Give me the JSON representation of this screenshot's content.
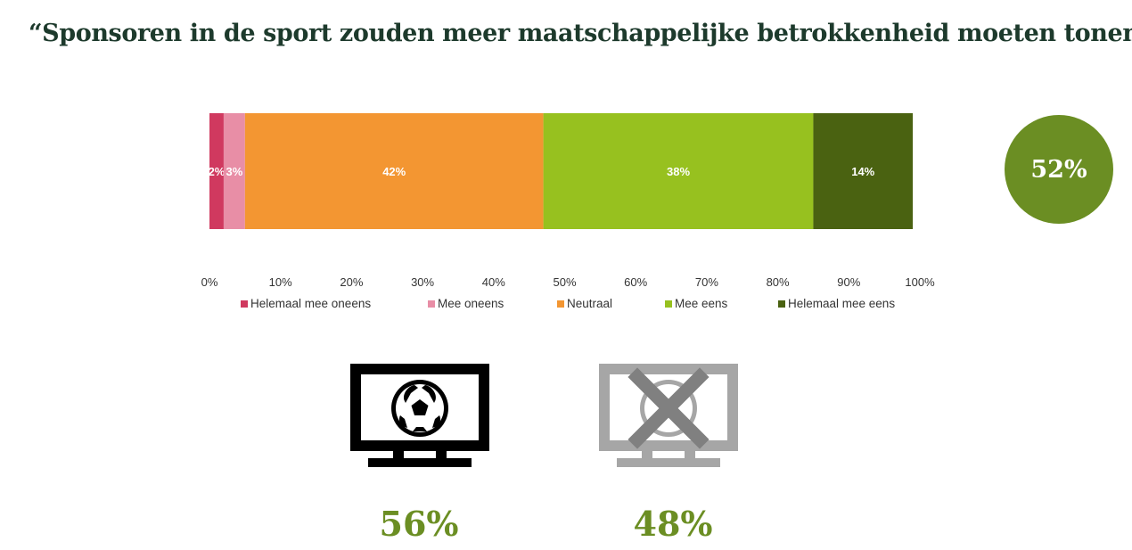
{
  "title": "“Sponsoren in de sport zouden meer maatschappelijke betrokkenheid moeten tonen.”",
  "colors": {
    "title": "#1d3a2c",
    "accent": "#6b8e23",
    "icon_watch": "#000000",
    "icon_nowatch": "#a6a6a6",
    "icon_cross": "#808080"
  },
  "chart_data": {
    "type": "bar",
    "orientation": "horizontal-stacked",
    "series": [
      {
        "name": "Helemaal mee oneens",
        "value": 2,
        "label": "2%",
        "color": "#d0395f"
      },
      {
        "name": "Mee oneens",
        "value": 3,
        "label": "3%",
        "color": "#e88ea6"
      },
      {
        "name": "Neutraal",
        "value": 42,
        "label": "42%",
        "color": "#f39632"
      },
      {
        "name": "Mee eens",
        "value": 38,
        "label": "38%",
        "color": "#97c11f"
      },
      {
        "name": "Helemaal mee eens",
        "value": 14,
        "label": "14%",
        "color": "#4a6211"
      }
    ],
    "xlim": [
      0,
      100
    ],
    "xticks": [
      "0%",
      "10%",
      "20%",
      "30%",
      "40%",
      "50%",
      "60%",
      "70%",
      "80%",
      "90%",
      "100%"
    ],
    "legend_position": "bottom",
    "grid": false
  },
  "summary": {
    "value": "52%",
    "color": "#6b8e23"
  },
  "icons": [
    {
      "name": "tv-football-icon",
      "value": "56%"
    },
    {
      "name": "tv-football-crossed-icon",
      "value": "48%"
    }
  ]
}
